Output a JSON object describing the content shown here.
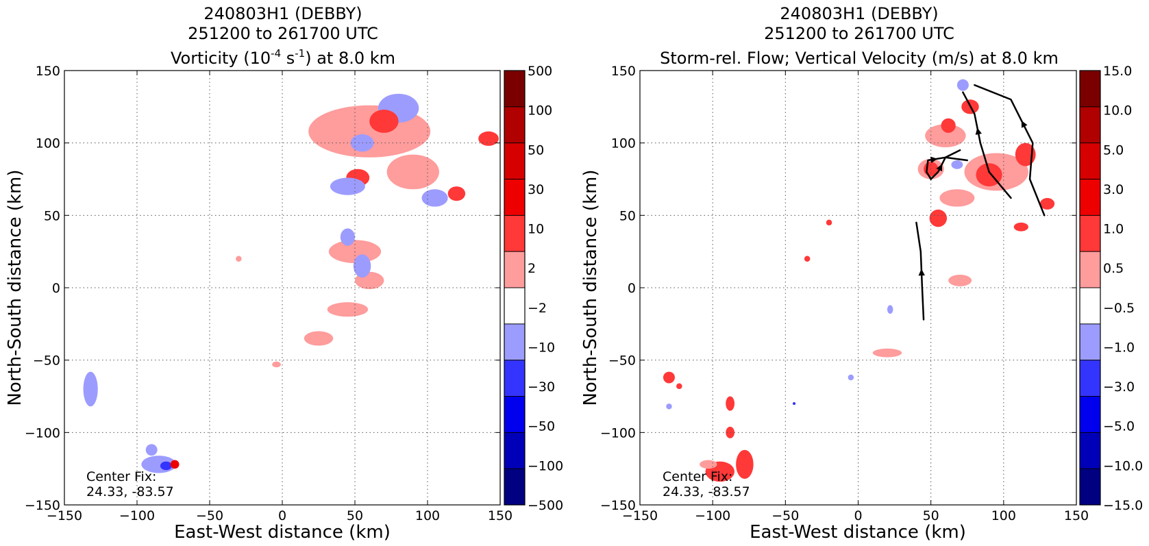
{
  "chart_data": [
    {
      "type": "heatmap",
      "title": [
        "240803H1 (DEBBY)",
        "251200 to 261700 UTC"
      ],
      "title_line3": {
        "prefix": "Vorticity (10",
        "exp1": "-4",
        "mid": " s",
        "exp2": "-1",
        "suffix": ") at 8.0 km"
      },
      "xlabel": "East-West distance (km)",
      "ylabel": "North-South distance (km)",
      "xlim": [
        -150,
        150
      ],
      "ylim": [
        -150,
        150
      ],
      "xticks": [
        -150,
        -100,
        -50,
        0,
        50,
        100,
        150
      ],
      "yticks": [
        -150,
        -100,
        -50,
        0,
        50,
        100,
        150
      ],
      "xtick_labels": [
        "−150",
        "−100",
        "−50",
        "0",
        "50",
        "100",
        "150"
      ],
      "ytick_labels": [
        "−150",
        "−100",
        "−50",
        "0",
        "50",
        "100",
        "150"
      ],
      "grid": true,
      "annotation": [
        "Center Fix:",
        "24.33, -83.57"
      ],
      "colorbar": {
        "labels": [
          "500",
          "100",
          "50",
          "30",
          "10",
          "2",
          "−2",
          "−10",
          "−30",
          "−50",
          "−100",
          "−500"
        ],
        "colors": [
          "#7a0000",
          "#b00000",
          "#d60000",
          "#ee0000",
          "#ff3838",
          "#ff9c9c",
          "#ffffff",
          "#9c9cff",
          "#3434ff",
          "#0000ee",
          "#0000b8",
          "#000080"
        ]
      },
      "regions": [
        {
          "x": 60,
          "y": 108,
          "rx": 42,
          "ry": 18,
          "cls": 5
        },
        {
          "x": 80,
          "y": 124,
          "rx": 14,
          "ry": 10,
          "cls": 7
        },
        {
          "x": 70,
          "y": 115,
          "rx": 10,
          "ry": 8,
          "cls": 4
        },
        {
          "x": 55,
          "y": 100,
          "rx": 8,
          "ry": 6,
          "cls": 7
        },
        {
          "x": 90,
          "y": 80,
          "rx": 18,
          "ry": 12,
          "cls": 5
        },
        {
          "x": 52,
          "y": 76,
          "rx": 8,
          "ry": 6,
          "cls": 4
        },
        {
          "x": 105,
          "y": 62,
          "rx": 9,
          "ry": 6,
          "cls": 7
        },
        {
          "x": 120,
          "y": 65,
          "rx": 6,
          "ry": 5,
          "cls": 4
        },
        {
          "x": 142,
          "y": 103,
          "rx": 7,
          "ry": 5,
          "cls": 4
        },
        {
          "x": 45,
          "y": 70,
          "rx": 12,
          "ry": 6,
          "cls": 7
        },
        {
          "x": 50,
          "y": 25,
          "rx": 18,
          "ry": 8,
          "cls": 5
        },
        {
          "x": 60,
          "y": 5,
          "rx": 10,
          "ry": 6,
          "cls": 5
        },
        {
          "x": 55,
          "y": 15,
          "rx": 6,
          "ry": 8,
          "cls": 7
        },
        {
          "x": 45,
          "y": -15,
          "rx": 14,
          "ry": 5,
          "cls": 5
        },
        {
          "x": 25,
          "y": -35,
          "rx": 10,
          "ry": 5,
          "cls": 5
        },
        {
          "x": 45,
          "y": 35,
          "rx": 5,
          "ry": 6,
          "cls": 7
        },
        {
          "x": -30,
          "y": 20,
          "rx": 2,
          "ry": 2,
          "cls": 5
        },
        {
          "x": -4,
          "y": -53,
          "rx": 3,
          "ry": 2,
          "cls": 5
        },
        {
          "x": -132,
          "y": -70,
          "rx": 5,
          "ry": 12,
          "cls": 7
        },
        {
          "x": -85,
          "y": -122,
          "rx": 12,
          "ry": 6,
          "cls": 7
        },
        {
          "x": -80,
          "y": -123,
          "rx": 4,
          "ry": 3,
          "cls": 8
        },
        {
          "x": -74,
          "y": -122,
          "rx": 3,
          "ry": 3,
          "cls": 3
        },
        {
          "x": -90,
          "y": -112,
          "rx": 4,
          "ry": 4,
          "cls": 7
        }
      ]
    },
    {
      "type": "heatmap",
      "title": [
        "240803H1 (DEBBY)",
        "251200 to 261700 UTC",
        "Storm-rel. Flow; Vertical Velocity (m/s) at 8.0 km"
      ],
      "xlabel": "East-West distance (km)",
      "ylabel": "North-South distance (km)",
      "xlim": [
        -150,
        150
      ],
      "ylim": [
        -150,
        150
      ],
      "xticks": [
        -150,
        -100,
        -50,
        0,
        50,
        100,
        150
      ],
      "yticks": [
        -150,
        -100,
        -50,
        0,
        50,
        100,
        150
      ],
      "xtick_labels": [
        "−150",
        "−100",
        "−50",
        "0",
        "50",
        "100",
        "150"
      ],
      "ytick_labels": [
        "−150",
        "−100",
        "−50",
        "0",
        "50",
        "100",
        "150"
      ],
      "grid": true,
      "annotation": [
        "Center Fix:",
        "24.33, -83.57"
      ],
      "colorbar": {
        "labels": [
          "15.0",
          "10.0",
          "5.0",
          "3.0",
          "1.0",
          "0.5",
          "−0.5",
          "−1.0",
          "−3.0",
          "−5.0",
          "−10.0",
          "−15.0"
        ],
        "colors": [
          "#7a0000",
          "#b00000",
          "#d60000",
          "#ee0000",
          "#ff3838",
          "#ff9c9c",
          "#ffffff",
          "#9c9cff",
          "#3434ff",
          "#0000ee",
          "#0000b8",
          "#000080"
        ]
      },
      "regions": [
        {
          "x": 60,
          "y": 105,
          "rx": 14,
          "ry": 8,
          "cls": 5
        },
        {
          "x": 77,
          "y": 125,
          "rx": 6,
          "ry": 5,
          "cls": 4
        },
        {
          "x": 62,
          "y": 112,
          "rx": 5,
          "ry": 5,
          "cls": 4
        },
        {
          "x": 95,
          "y": 80,
          "rx": 22,
          "ry": 13,
          "cls": 5
        },
        {
          "x": 90,
          "y": 78,
          "rx": 9,
          "ry": 8,
          "cls": 4
        },
        {
          "x": 115,
          "y": 92,
          "rx": 7,
          "ry": 8,
          "cls": 4
        },
        {
          "x": 50,
          "y": 82,
          "rx": 9,
          "ry": 7,
          "cls": 5
        },
        {
          "x": 50,
          "y": 82,
          "rx": 5,
          "ry": 5,
          "cls": 4
        },
        {
          "x": 55,
          "y": 48,
          "rx": 6,
          "ry": 6,
          "cls": 4
        },
        {
          "x": 68,
          "y": 62,
          "rx": 12,
          "ry": 6,
          "cls": 5
        },
        {
          "x": 130,
          "y": 58,
          "rx": 5,
          "ry": 4,
          "cls": 4
        },
        {
          "x": 112,
          "y": 42,
          "rx": 5,
          "ry": 3,
          "cls": 4
        },
        {
          "x": 70,
          "y": 5,
          "rx": 8,
          "ry": 4,
          "cls": 5
        },
        {
          "x": 20,
          "y": -45,
          "rx": 10,
          "ry": 3,
          "cls": 5
        },
        {
          "x": -130,
          "y": -62,
          "rx": 4,
          "ry": 4,
          "cls": 4
        },
        {
          "x": -123,
          "y": -68,
          "rx": 2,
          "ry": 2,
          "cls": 4
        },
        {
          "x": -88,
          "y": -80,
          "rx": 3,
          "ry": 5,
          "cls": 4
        },
        {
          "x": -88,
          "y": -100,
          "rx": 3,
          "ry": 4,
          "cls": 4
        },
        {
          "x": -95,
          "y": -127,
          "rx": 10,
          "ry": 7,
          "cls": 4
        },
        {
          "x": -78,
          "y": -122,
          "rx": 6,
          "ry": 10,
          "cls": 4
        },
        {
          "x": -103,
          "y": -122,
          "rx": 6,
          "ry": 3,
          "cls": 5
        },
        {
          "x": -35,
          "y": 20,
          "rx": 2,
          "ry": 2,
          "cls": 4
        },
        {
          "x": -20,
          "y": 45,
          "rx": 2,
          "ry": 2,
          "cls": 4
        },
        {
          "x": 22,
          "y": -15,
          "rx": 2,
          "ry": 3,
          "cls": 7
        },
        {
          "x": -5,
          "y": -62,
          "rx": 2,
          "ry": 2,
          "cls": 7
        },
        {
          "x": -44,
          "y": -80,
          "rx": 1,
          "ry": 1,
          "cls": 8
        },
        {
          "x": -130,
          "y": -82,
          "rx": 2,
          "ry": 2,
          "cls": 7
        },
        {
          "x": 72,
          "y": 140,
          "rx": 4,
          "ry": 4,
          "cls": 7
        },
        {
          "x": 68,
          "y": 85,
          "rx": 4,
          "ry": 3,
          "cls": 7
        }
      ],
      "streamlines": [
        [
          [
            45,
            -22
          ],
          [
            44,
            0
          ],
          [
            43,
            25
          ],
          [
            40,
            45
          ]
        ],
        [
          [
            50,
            75
          ],
          [
            47,
            80
          ],
          [
            48,
            88
          ],
          [
            60,
            90
          ],
          [
            75,
            88
          ]
        ],
        [
          [
            50,
            75
          ],
          [
            55,
            80
          ],
          [
            60,
            90
          ],
          [
            70,
            95
          ]
        ],
        [
          [
            105,
            62
          ],
          [
            90,
            80
          ],
          [
            84,
            100
          ],
          [
            80,
            120
          ],
          [
            72,
            135
          ]
        ],
        [
          [
            128,
            50
          ],
          [
            118,
            75
          ],
          [
            120,
            100
          ],
          [
            105,
            130
          ],
          [
            80,
            140
          ]
        ]
      ]
    }
  ]
}
